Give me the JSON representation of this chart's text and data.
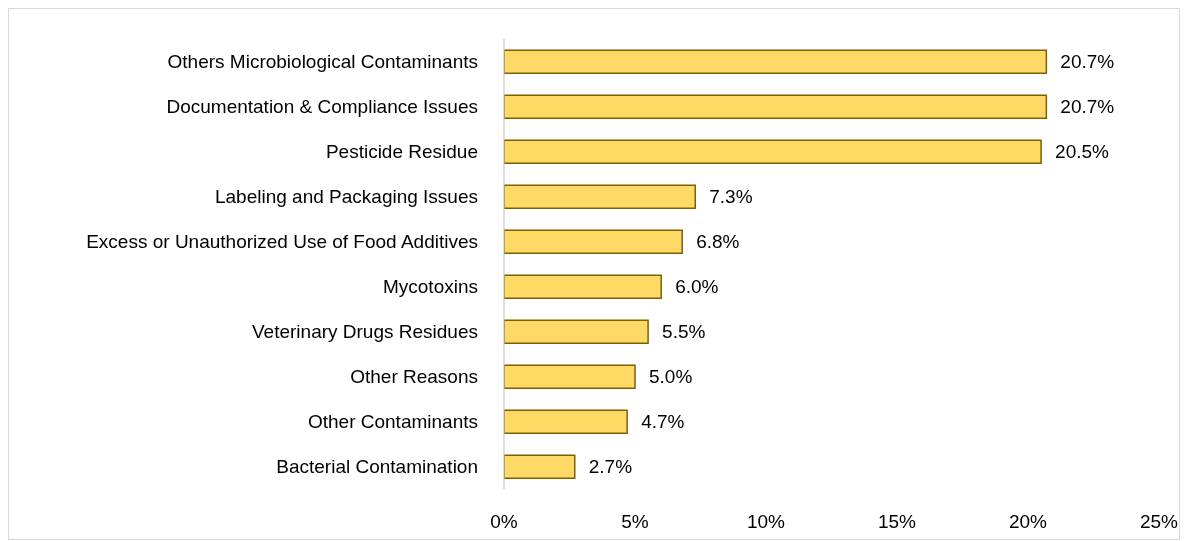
{
  "chart_data": {
    "type": "bar",
    "orientation": "horizontal",
    "categories": [
      "Others Microbiological Contaminants",
      "Documentation & Compliance Issues",
      "Pesticide Residue",
      "Labeling and Packaging Issues",
      "Excess or Unauthorized Use of Food Additives",
      "Mycotoxins",
      "Veterinary Drugs Residues",
      "Other Reasons",
      "Other Contaminants",
      "Bacterial Contamination"
    ],
    "values": [
      20.7,
      20.7,
      20.5,
      7.3,
      6.8,
      6.0,
      5.5,
      5.0,
      4.7,
      2.7
    ],
    "value_labels": [
      "20.7%",
      "20.7%",
      "20.5%",
      "7.3%",
      "6.8%",
      "6.0%",
      "5.5%",
      "5.0%",
      "4.7%",
      "2.7%"
    ],
    "color": "#ffd966",
    "xlim": [
      0,
      25
    ],
    "xticks": [
      {
        "value": 0,
        "label": "0%"
      },
      {
        "value": 5,
        "label": "5%"
      },
      {
        "value": 10,
        "label": "10%"
      },
      {
        "value": 15,
        "label": "15%"
      },
      {
        "value": 20,
        "label": "20%"
      },
      {
        "value": 25,
        "label": "25%"
      }
    ],
    "grid": false,
    "legend": false
  }
}
